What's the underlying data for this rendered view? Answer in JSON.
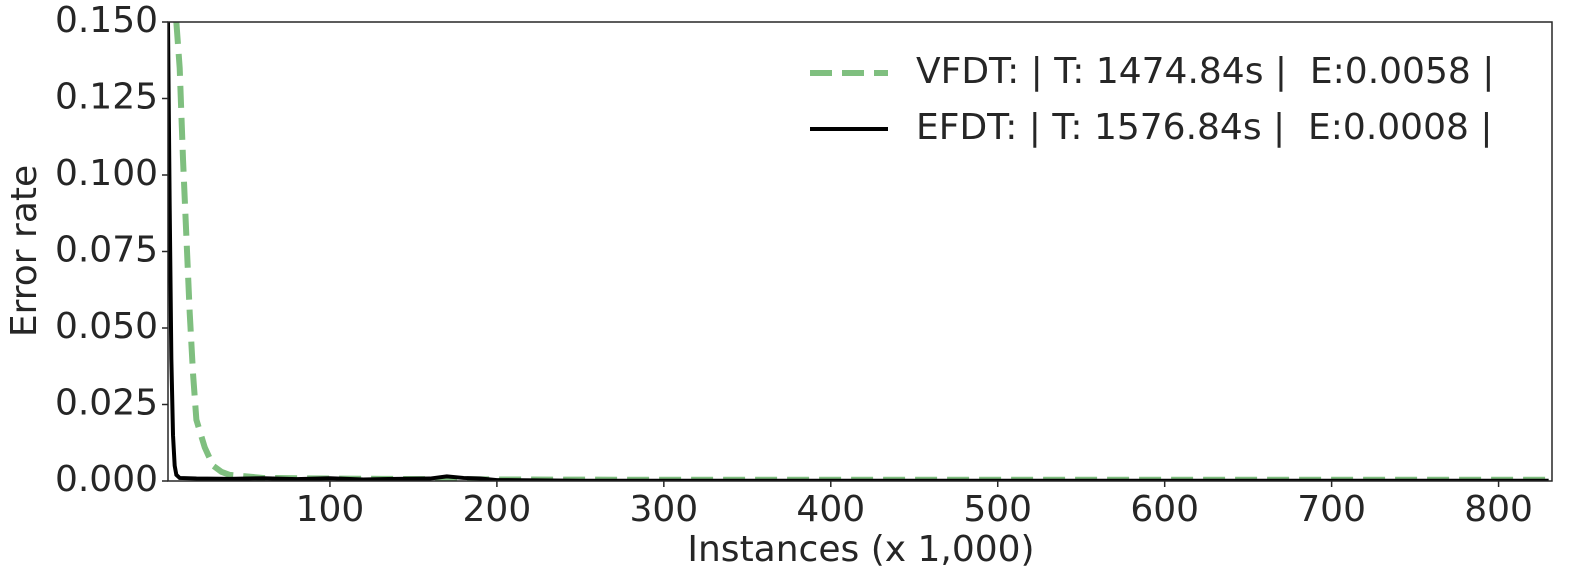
{
  "chart_data": {
    "type": "line",
    "x_label": "Instances (x 1,000)",
    "y_label": "Error rate",
    "xlim": [
      3,
      832
    ],
    "ylim": [
      0,
      0.15
    ],
    "xticks": [
      100,
      200,
      300,
      400,
      500,
      600,
      700,
      800
    ],
    "yticks": [
      {
        "value": 0,
        "label": "0.000"
      },
      {
        "value": 0.025,
        "label": "0.025"
      },
      {
        "value": 0.05,
        "label": "0.050"
      },
      {
        "value": 0.075,
        "label": "0.075"
      },
      {
        "value": 0.1,
        "label": "0.100"
      },
      {
        "value": 0.125,
        "label": "0.125"
      },
      {
        "value": 0.15,
        "label": "0.150"
      }
    ],
    "legend": "upper right",
    "series": [
      {
        "name": "VFDT: | T: 1474.84s |  E:0.0058 |",
        "color": "#7fbf7f",
        "linestyle": "dashed",
        "x": [
          8,
          10,
          12,
          14,
          16,
          18,
          20,
          25,
          30,
          35,
          40,
          60,
          100,
          200,
          300,
          400,
          500,
          600,
          700,
          800,
          830
        ],
        "values": [
          0.15,
          0.135,
          0.105,
          0.08,
          0.055,
          0.035,
          0.02,
          0.011,
          0.005,
          0.003,
          0.002,
          0.001,
          0.0008,
          0.0005,
          0.0004,
          0.0004,
          0.0004,
          0.0004,
          0.0004,
          0.0004,
          0.0004
        ]
      },
      {
        "name": "EFDT: | T: 1576.84s |  E:0.0008 |",
        "color": "#000000",
        "linestyle": "solid",
        "x": [
          3,
          4,
          5,
          6,
          7,
          8,
          10,
          20,
          40,
          60,
          80,
          100,
          120,
          140,
          160,
          170,
          180,
          190,
          200,
          250,
          300,
          400,
          500,
          600,
          700,
          800,
          830
        ],
        "values": [
          0.15,
          0.09,
          0.04,
          0.015,
          0.005,
          0.002,
          0.001,
          0.0008,
          0.0007,
          0.0009,
          0.0006,
          0.0009,
          0.0005,
          0.0007,
          0.0008,
          0.0015,
          0.001,
          0.0008,
          0.0003,
          0.0001,
          0.0001,
          0.0001,
          0.0001,
          0.0001,
          0.0001,
          0.0001,
          0.0001
        ]
      }
    ]
  }
}
